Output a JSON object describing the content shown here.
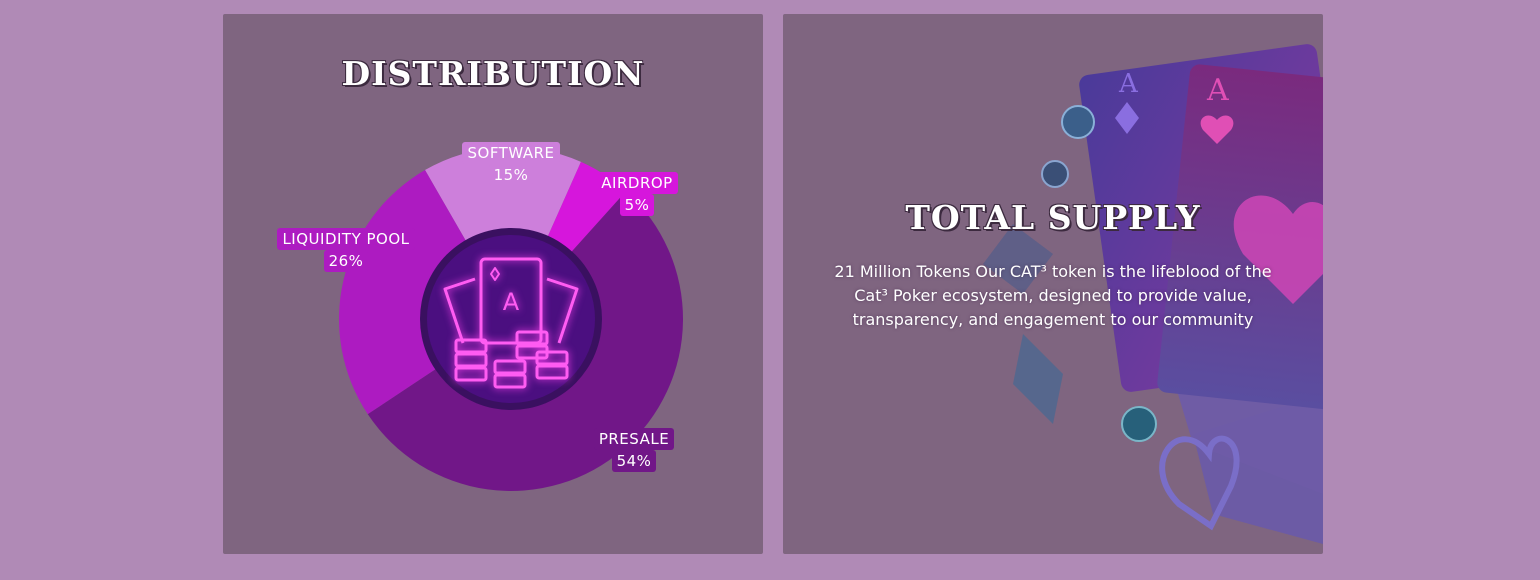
{
  "distribution": {
    "title": "DISTRIBUTION",
    "center_icon": "poker-cards-chips-icon",
    "segments": [
      {
        "name": "SOFTWARE",
        "percent_label": "15%",
        "value": 15,
        "color": "#cd7fdb"
      },
      {
        "name": "AIRDROP",
        "percent_label": "5%",
        "value": 5,
        "color": "#d616dc"
      },
      {
        "name": "PRESALE",
        "percent_label": "54%",
        "value": 54,
        "color": "#711788"
      },
      {
        "name": "LIQUIDITY POOL",
        "percent_label": "26%",
        "value": 26,
        "color": "#ad1bc1"
      }
    ]
  },
  "chart_data": {
    "type": "pie",
    "title": "DISTRIBUTION",
    "categories": [
      "SOFTWARE",
      "AIRDROP",
      "PRESALE",
      "LIQUIDITY POOL"
    ],
    "values": [
      15,
      5,
      54,
      26
    ],
    "colors": [
      "#cd7fdb",
      "#d616dc",
      "#711788",
      "#ad1bc1"
    ]
  },
  "supply": {
    "title": "TOTAL SUPPLY",
    "description": "21 Million Tokens Our CAT³ token is the lifeblood of the Cat³ Poker ecosystem, designed to provide value, transparency, and engagement to our community",
    "card_rank_1": "A",
    "card_rank_2": "A"
  },
  "colors": {
    "page_background": "#b08ab6",
    "panel_background": "#7f6580",
    "neon_pink": "#ff4df0"
  }
}
